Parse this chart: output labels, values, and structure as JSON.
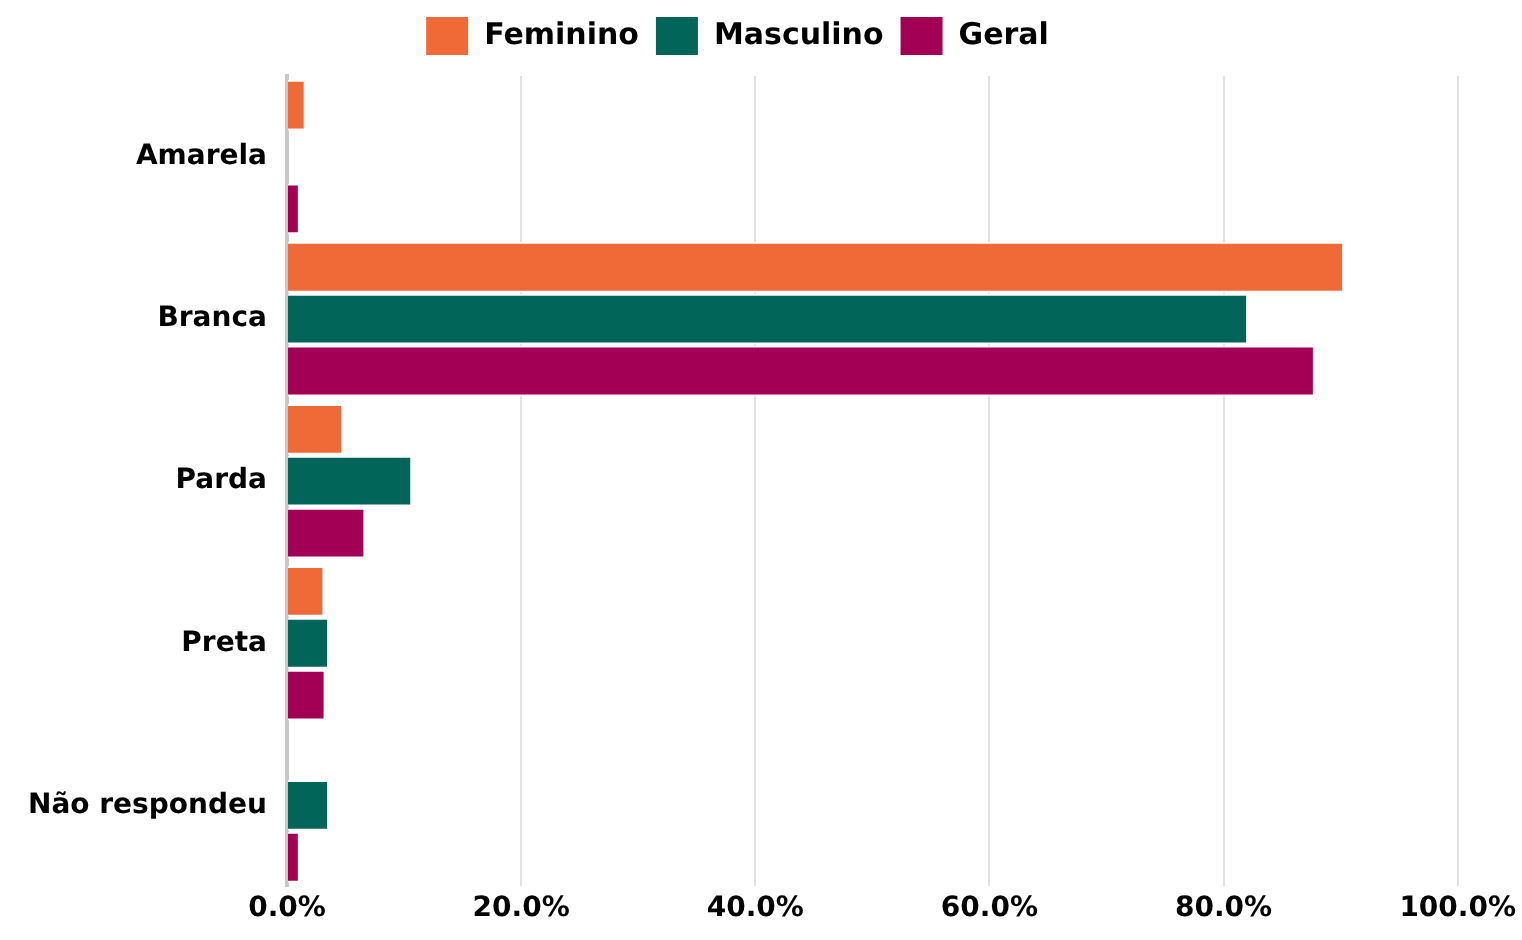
{
  "chart_data": {
    "type": "bar",
    "orientation": "horizontal",
    "categories": [
      "Amarela",
      "Branca",
      "Parda",
      "Preta",
      "Não respondeu"
    ],
    "series": [
      {
        "name": "Feminino",
        "color": "#ef6a37",
        "values": [
          1.6,
          90.3,
          4.8,
          3.2,
          0
        ]
      },
      {
        "name": "Masculino",
        "color": "#02655a",
        "values": [
          0,
          82.1,
          10.7,
          3.6,
          3.6
        ]
      },
      {
        "name": "Geral",
        "color": "#a30055",
        "values": [
          1.1,
          87.8,
          6.7,
          3.3,
          1.1
        ]
      }
    ],
    "xlim": [
      0,
      100
    ],
    "xticks": [
      {
        "value": 0,
        "label": "0.0%"
      },
      {
        "value": 20,
        "label": "20.0%"
      },
      {
        "value": 40,
        "label": "40.0%"
      },
      {
        "value": 60,
        "label": "60.0%"
      },
      {
        "value": 80,
        "label": "80.0%"
      },
      {
        "value": 100,
        "label": "100.0%"
      }
    ],
    "grid": "x",
    "legend": "top"
  }
}
